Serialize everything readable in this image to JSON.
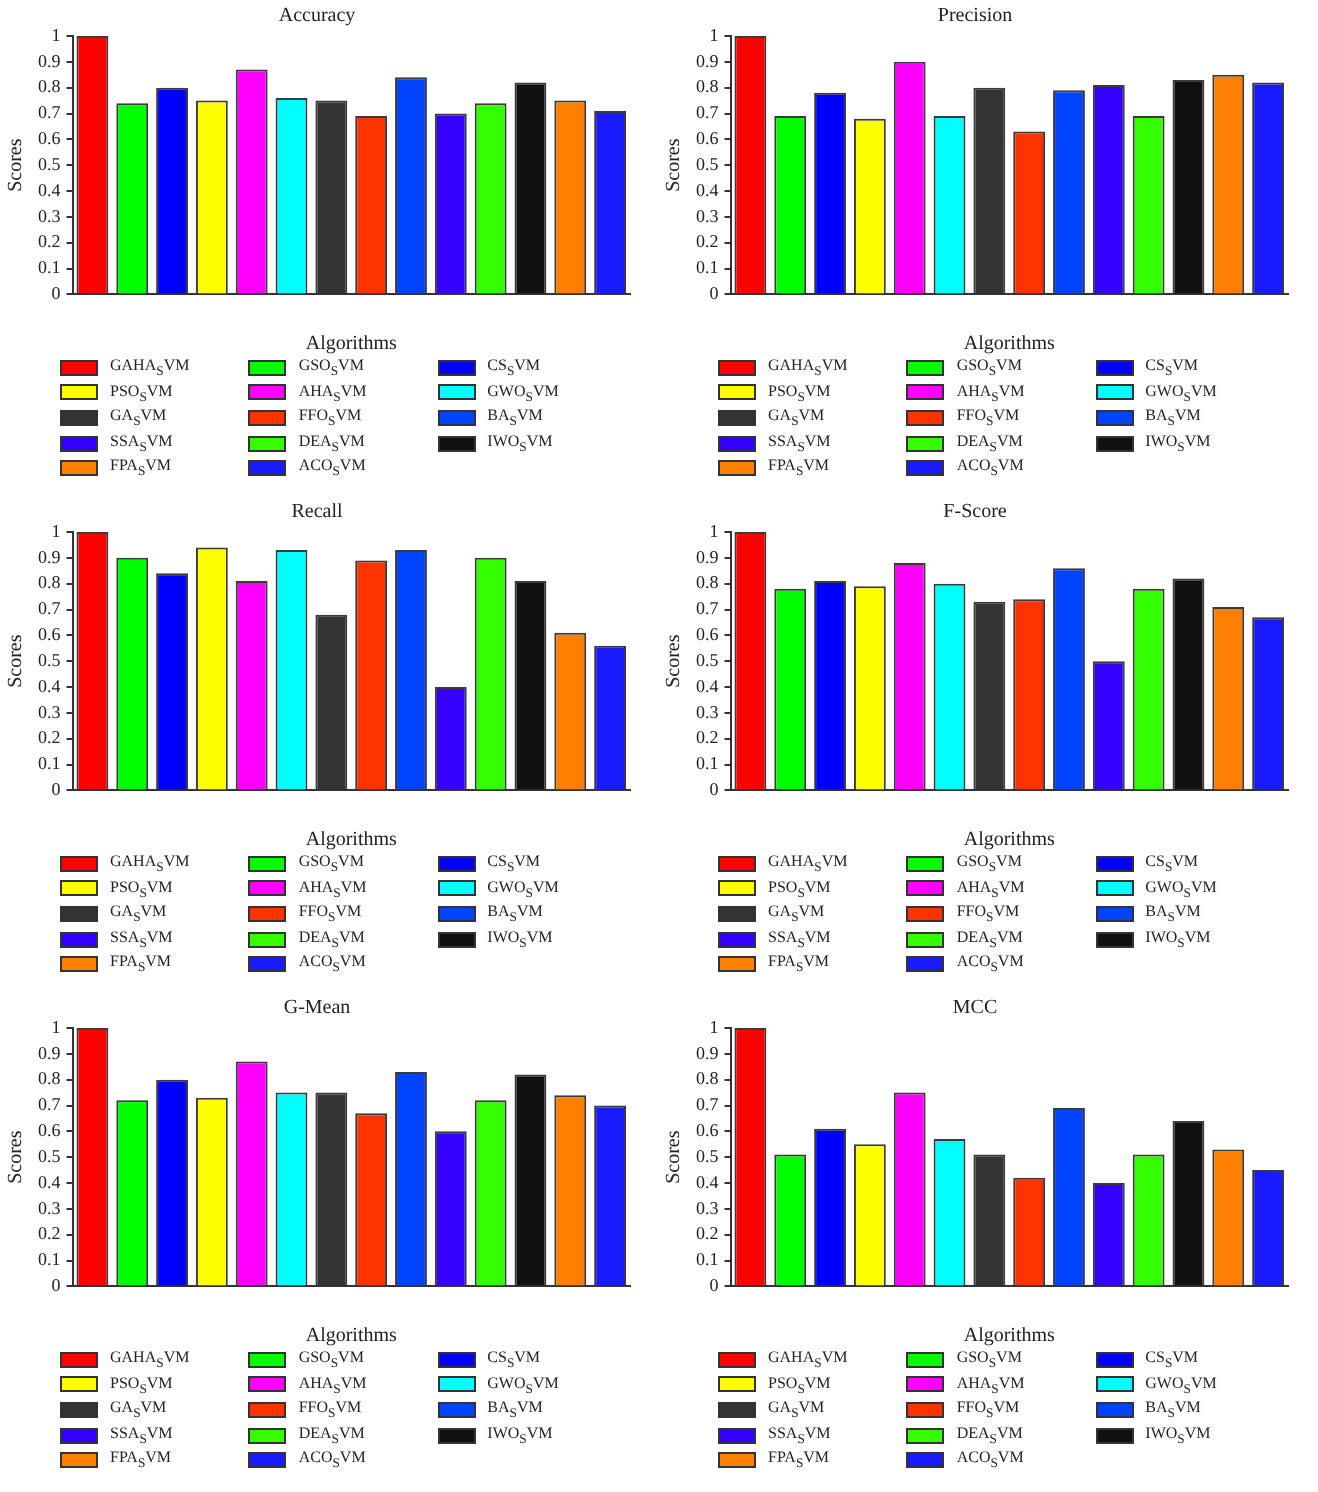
{
  "chart_data": [
    {
      "type": "bar",
      "title": "Accuracy",
      "xlabel": "Algorithms",
      "ylabel": "Scores",
      "categories": [
        null,
        null,
        null,
        null,
        null,
        null,
        null,
        null,
        null,
        null,
        null,
        null,
        null,
        null
      ],
      "ylim": [
        0,
        1
      ],
      "yticks": [
        0,
        0.1,
        0.2,
        0.3,
        0.4,
        0.5,
        0.6,
        0.7,
        0.8,
        0.9,
        1
      ],
      "legend": "bottom",
      "series": [
        {
          "name": "GAHA$_{S}$VM",
          "color": "#ff0000",
          "values": [
            1.0,
            null,
            null,
            null,
            null,
            null,
            null,
            null,
            null,
            null,
            null,
            null,
            null,
            null
          ]
        },
        {
          "name": "GSO$_{S}$VM",
          "color": "#00ff00",
          "values": [
            null,
            0.74,
            null,
            null,
            null,
            null,
            null,
            null,
            null,
            null,
            null,
            null,
            null,
            null
          ]
        },
        {
          "name": "CS$_{S}$VM",
          "color": "#0000ff",
          "values": [
            null,
            null,
            0.8,
            null,
            null,
            null,
            null,
            null,
            null,
            null,
            null,
            null,
            null,
            null
          ]
        },
        {
          "name": "PSO$_{S}$VM",
          "color": "#ffff00",
          "values": [
            null,
            null,
            null,
            0.75,
            null,
            null,
            null,
            null,
            null,
            null,
            null,
            null,
            null,
            null
          ]
        },
        {
          "name": "AHA$_{S}$VM",
          "color": "#ff00ff",
          "values": [
            null,
            null,
            null,
            null,
            0.87,
            null,
            null,
            null,
            null,
            null,
            null,
            null,
            null,
            null
          ]
        },
        {
          "name": "GWO$_{S}$VM",
          "color": "#00ffff",
          "values": [
            null,
            null,
            null,
            null,
            null,
            0.76,
            null,
            null,
            null,
            null,
            null,
            null,
            null,
            null
          ]
        },
        {
          "name": "GA$_{S}$VM",
          "color": "#333333",
          "values": [
            null,
            null,
            null,
            null,
            null,
            null,
            0.75,
            null,
            null,
            null,
            null,
            null,
            null,
            null
          ]
        },
        {
          "name": "FFO$_{S}$VM",
          "color": "#ff3300",
          "values": [
            null,
            null,
            null,
            null,
            null,
            null,
            null,
            0.69,
            null,
            null,
            null,
            null,
            null,
            null
          ]
        },
        {
          "name": "BA$_{S}$VM",
          "color": "#0044ff",
          "values": [
            null,
            null,
            null,
            null,
            null,
            null,
            null,
            null,
            0.84,
            null,
            null,
            null,
            null,
            null
          ]
        },
        {
          "name": "SSA$_{S}$VM",
          "color": "#3300ff",
          "values": [
            null,
            null,
            null,
            null,
            null,
            null,
            null,
            null,
            null,
            0.7,
            null,
            null,
            null,
            null
          ]
        },
        {
          "name": "DEA$_{S}$VM",
          "color": "#33ff00",
          "values": [
            null,
            null,
            null,
            null,
            null,
            null,
            null,
            null,
            null,
            null,
            0.74,
            null,
            null,
            null
          ]
        },
        {
          "name": "IWO$_{S}$VM",
          "color": "#111111",
          "values": [
            null,
            null,
            null,
            null,
            null,
            null,
            null,
            null,
            null,
            null,
            null,
            0.82,
            null,
            null
          ]
        },
        {
          "name": "FPA$_{S}$VM",
          "color": "#ff8000",
          "values": [
            null,
            null,
            null,
            null,
            null,
            null,
            null,
            null,
            null,
            null,
            null,
            null,
            0.75,
            null
          ]
        },
        {
          "name": "ACO$_{S}$VM",
          "color": "#1a1aff",
          "values": [
            null,
            null,
            null,
            null,
            null,
            null,
            null,
            null,
            null,
            null,
            null,
            null,
            null,
            0.71
          ]
        }
      ]
    },
    {
      "type": "bar",
      "title": "Precision",
      "xlabel": "Algorithms",
      "ylabel": "Scores",
      "categories": [
        null,
        null,
        null,
        null,
        null,
        null,
        null,
        null,
        null,
        null,
        null,
        null,
        null,
        null
      ],
      "ylim": [
        0,
        1
      ],
      "yticks": [
        0,
        0.1,
        0.2,
        0.3,
        0.4,
        0.5,
        0.6,
        0.7,
        0.8,
        0.9,
        1
      ],
      "legend": "bottom",
      "series": [
        {
          "name": "GAHA$_{S}$VM",
          "color": "#ff0000",
          "values": [
            1.0,
            null,
            null,
            null,
            null,
            null,
            null,
            null,
            null,
            null,
            null,
            null,
            null,
            null
          ]
        },
        {
          "name": "GSO$_{S}$VM",
          "color": "#00ff00",
          "values": [
            null,
            0.69,
            null,
            null,
            null,
            null,
            null,
            null,
            null,
            null,
            null,
            null,
            null,
            null
          ]
        },
        {
          "name": "CS$_{S}$VM",
          "color": "#0000ff",
          "values": [
            null,
            null,
            0.78,
            null,
            null,
            null,
            null,
            null,
            null,
            null,
            null,
            null,
            null,
            null
          ]
        },
        {
          "name": "PSO$_{S}$VM",
          "color": "#ffff00",
          "values": [
            null,
            null,
            null,
            0.68,
            null,
            null,
            null,
            null,
            null,
            null,
            null,
            null,
            null,
            null
          ]
        },
        {
          "name": "AHA$_{S}$VM",
          "color": "#ff00ff",
          "values": [
            null,
            null,
            null,
            null,
            0.9,
            null,
            null,
            null,
            null,
            null,
            null,
            null,
            null,
            null
          ]
        },
        {
          "name": "GWO$_{S}$VM",
          "color": "#00ffff",
          "values": [
            null,
            null,
            null,
            null,
            null,
            0.69,
            null,
            null,
            null,
            null,
            null,
            null,
            null,
            null
          ]
        },
        {
          "name": "GA$_{S}$VM",
          "color": "#333333",
          "values": [
            null,
            null,
            null,
            null,
            null,
            null,
            0.8,
            null,
            null,
            null,
            null,
            null,
            null,
            null
          ]
        },
        {
          "name": "FFO$_{S}$VM",
          "color": "#ff3300",
          "values": [
            null,
            null,
            null,
            null,
            null,
            null,
            null,
            0.63,
            null,
            null,
            null,
            null,
            null,
            null
          ]
        },
        {
          "name": "BA$_{S}$VM",
          "color": "#0044ff",
          "values": [
            null,
            null,
            null,
            null,
            null,
            null,
            null,
            null,
            0.79,
            null,
            null,
            null,
            null,
            null
          ]
        },
        {
          "name": "SSA$_{S}$VM",
          "color": "#3300ff",
          "values": [
            null,
            null,
            null,
            null,
            null,
            null,
            null,
            null,
            null,
            0.81,
            null,
            null,
            null,
            null
          ]
        },
        {
          "name": "DEA$_{S}$VM",
          "color": "#33ff00",
          "values": [
            null,
            null,
            null,
            null,
            null,
            null,
            null,
            null,
            null,
            null,
            0.69,
            null,
            null,
            null
          ]
        },
        {
          "name": "IWO$_{S}$VM",
          "color": "#111111",
          "values": [
            null,
            null,
            null,
            null,
            null,
            null,
            null,
            null,
            null,
            null,
            null,
            0.83,
            null,
            null
          ]
        },
        {
          "name": "FPA$_{S}$VM",
          "color": "#ff8000",
          "values": [
            null,
            null,
            null,
            null,
            null,
            null,
            null,
            null,
            null,
            null,
            null,
            null,
            0.85,
            null
          ]
        },
        {
          "name": "ACO$_{S}$VM",
          "color": "#1a1aff",
          "values": [
            null,
            null,
            null,
            null,
            null,
            null,
            null,
            null,
            null,
            null,
            null,
            null,
            null,
            0.82
          ]
        }
      ]
    },
    {
      "type": "bar",
      "title": "Recall",
      "xlabel": "Algorithms",
      "ylabel": "Scores",
      "categories": [
        null,
        null,
        null,
        null,
        null,
        null,
        null,
        null,
        null,
        null,
        null,
        null,
        null,
        null
      ],
      "ylim": [
        0,
        1
      ],
      "yticks": [
        0,
        0.1,
        0.2,
        0.3,
        0.4,
        0.5,
        0.6,
        0.7,
        0.8,
        0.9,
        1
      ],
      "legend": "bottom",
      "series": [
        {
          "name": "GAHA$_{S}$VM",
          "color": "#ff0000",
          "values": [
            1.0,
            null,
            null,
            null,
            null,
            null,
            null,
            null,
            null,
            null,
            null,
            null,
            null,
            null
          ]
        },
        {
          "name": "GSO$_{S}$VM",
          "color": "#00ff00",
          "values": [
            null,
            0.9,
            null,
            null,
            null,
            null,
            null,
            null,
            null,
            null,
            null,
            null,
            null,
            null
          ]
        },
        {
          "name": "CS$_{S}$VM",
          "color": "#0000ff",
          "values": [
            null,
            null,
            0.84,
            null,
            null,
            null,
            null,
            null,
            null,
            null,
            null,
            null,
            null,
            null
          ]
        },
        {
          "name": "PSO$_{S}$VM",
          "color": "#ffff00",
          "values": [
            null,
            null,
            null,
            0.94,
            null,
            null,
            null,
            null,
            null,
            null,
            null,
            null,
            null,
            null
          ]
        },
        {
          "name": "AHA$_{S}$VM",
          "color": "#ff00ff",
          "values": [
            null,
            null,
            null,
            null,
            0.81,
            null,
            null,
            null,
            null,
            null,
            null,
            null,
            null,
            null
          ]
        },
        {
          "name": "GWO$_{S}$VM",
          "color": "#00ffff",
          "values": [
            null,
            null,
            null,
            null,
            null,
            0.93,
            null,
            null,
            null,
            null,
            null,
            null,
            null,
            null
          ]
        },
        {
          "name": "GA$_{S}$VM",
          "color": "#333333",
          "values": [
            null,
            null,
            null,
            null,
            null,
            null,
            0.68,
            null,
            null,
            null,
            null,
            null,
            null,
            null
          ]
        },
        {
          "name": "FFO$_{S}$VM",
          "color": "#ff3300",
          "values": [
            null,
            null,
            null,
            null,
            null,
            null,
            null,
            0.89,
            null,
            null,
            null,
            null,
            null,
            null
          ]
        },
        {
          "name": "BA$_{S}$VM",
          "color": "#0044ff",
          "values": [
            null,
            null,
            null,
            null,
            null,
            null,
            null,
            null,
            0.93,
            null,
            null,
            null,
            null,
            null
          ]
        },
        {
          "name": "SSA$_{S}$VM",
          "color": "#3300ff",
          "values": [
            null,
            null,
            null,
            null,
            null,
            null,
            null,
            null,
            null,
            0.4,
            null,
            null,
            null,
            null
          ]
        },
        {
          "name": "DEA$_{S}$VM",
          "color": "#33ff00",
          "values": [
            null,
            null,
            null,
            null,
            null,
            null,
            null,
            null,
            null,
            null,
            0.9,
            null,
            null,
            null
          ]
        },
        {
          "name": "IWO$_{S}$VM",
          "color": "#111111",
          "values": [
            null,
            null,
            null,
            null,
            null,
            null,
            null,
            null,
            null,
            null,
            null,
            0.81,
            null,
            null
          ]
        },
        {
          "name": "FPA$_{S}$VM",
          "color": "#ff8000",
          "values": [
            null,
            null,
            null,
            null,
            null,
            null,
            null,
            null,
            null,
            null,
            null,
            null,
            0.61,
            null
          ]
        },
        {
          "name": "ACO$_{S}$VM",
          "color": "#1a1aff",
          "values": [
            null,
            null,
            null,
            null,
            null,
            null,
            null,
            null,
            null,
            null,
            null,
            null,
            null,
            0.56
          ]
        }
      ]
    },
    {
      "type": "bar",
      "title": "F-Score",
      "xlabel": "Algorithms",
      "ylabel": "Scores",
      "categories": [
        null,
        null,
        null,
        null,
        null,
        null,
        null,
        null,
        null,
        null,
        null,
        null,
        null,
        null
      ],
      "ylim": [
        0,
        1
      ],
      "yticks": [
        0,
        0.1,
        0.2,
        0.3,
        0.4,
        0.5,
        0.6,
        0.7,
        0.8,
        0.9,
        1
      ],
      "legend": "bottom",
      "series": [
        {
          "name": "GAHA$_{S}$VM",
          "color": "#ff0000",
          "values": [
            1.0,
            null,
            null,
            null,
            null,
            null,
            null,
            null,
            null,
            null,
            null,
            null,
            null,
            null
          ]
        },
        {
          "name": "GSO$_{S}$VM",
          "color": "#00ff00",
          "values": [
            null,
            0.78,
            null,
            null,
            null,
            null,
            null,
            null,
            null,
            null,
            null,
            null,
            null,
            null
          ]
        },
        {
          "name": "CS$_{S}$VM",
          "color": "#0000ff",
          "values": [
            null,
            null,
            0.81,
            null,
            null,
            null,
            null,
            null,
            null,
            null,
            null,
            null,
            null,
            null
          ]
        },
        {
          "name": "PSO$_{S}$VM",
          "color": "#ffff00",
          "values": [
            null,
            null,
            null,
            0.79,
            null,
            null,
            null,
            null,
            null,
            null,
            null,
            null,
            null,
            null
          ]
        },
        {
          "name": "AHA$_{S}$VM",
          "color": "#ff00ff",
          "values": [
            null,
            null,
            null,
            null,
            0.88,
            null,
            null,
            null,
            null,
            null,
            null,
            null,
            null,
            null
          ]
        },
        {
          "name": "GWO$_{S}$VM",
          "color": "#00ffff",
          "values": [
            null,
            null,
            null,
            null,
            null,
            0.8,
            null,
            null,
            null,
            null,
            null,
            null,
            null,
            null
          ]
        },
        {
          "name": "GA$_{S}$VM",
          "color": "#333333",
          "values": [
            null,
            null,
            null,
            null,
            null,
            null,
            0.73,
            null,
            null,
            null,
            null,
            null,
            null,
            null
          ]
        },
        {
          "name": "FFO$_{S}$VM",
          "color": "#ff3300",
          "values": [
            null,
            null,
            null,
            null,
            null,
            null,
            null,
            0.74,
            null,
            null,
            null,
            null,
            null,
            null
          ]
        },
        {
          "name": "BA$_{S}$VM",
          "color": "#0044ff",
          "values": [
            null,
            null,
            null,
            null,
            null,
            null,
            null,
            null,
            0.86,
            null,
            null,
            null,
            null,
            null
          ]
        },
        {
          "name": "SSA$_{S}$VM",
          "color": "#3300ff",
          "values": [
            null,
            null,
            null,
            null,
            null,
            null,
            null,
            null,
            null,
            0.5,
            null,
            null,
            null,
            null
          ]
        },
        {
          "name": "DEA$_{S}$VM",
          "color": "#33ff00",
          "values": [
            null,
            null,
            null,
            null,
            null,
            null,
            null,
            null,
            null,
            null,
            0.78,
            null,
            null,
            null
          ]
        },
        {
          "name": "IWO$_{S}$VM",
          "color": "#111111",
          "values": [
            null,
            null,
            null,
            null,
            null,
            null,
            null,
            null,
            null,
            null,
            null,
            0.82,
            null,
            null
          ]
        },
        {
          "name": "FPA$_{S}$VM",
          "color": "#ff8000",
          "values": [
            null,
            null,
            null,
            null,
            null,
            null,
            null,
            null,
            null,
            null,
            null,
            null,
            0.71,
            null
          ]
        },
        {
          "name": "ACO$_{S}$VM",
          "color": "#1a1aff",
          "values": [
            null,
            null,
            null,
            null,
            null,
            null,
            null,
            null,
            null,
            null,
            null,
            null,
            null,
            0.67
          ]
        }
      ]
    },
    {
      "type": "bar",
      "title": "G-Mean",
      "xlabel": "Algorithms",
      "ylabel": "Scores",
      "categories": [
        null,
        null,
        null,
        null,
        null,
        null,
        null,
        null,
        null,
        null,
        null,
        null,
        null,
        null
      ],
      "ylim": [
        0,
        1
      ],
      "yticks": [
        0,
        0.1,
        0.2,
        0.3,
        0.4,
        0.5,
        0.6,
        0.7,
        0.8,
        0.9,
        1
      ],
      "legend": "bottom",
      "series": [
        {
          "name": "GAHA$_{S}$VM",
          "color": "#ff0000",
          "values": [
            1.0,
            null,
            null,
            null,
            null,
            null,
            null,
            null,
            null,
            null,
            null,
            null,
            null,
            null
          ]
        },
        {
          "name": "GSO$_{S}$VM",
          "color": "#00ff00",
          "values": [
            null,
            0.72,
            null,
            null,
            null,
            null,
            null,
            null,
            null,
            null,
            null,
            null,
            null,
            null
          ]
        },
        {
          "name": "CS$_{S}$VM",
          "color": "#0000ff",
          "values": [
            null,
            null,
            0.8,
            null,
            null,
            null,
            null,
            null,
            null,
            null,
            null,
            null,
            null,
            null
          ]
        },
        {
          "name": "PSO$_{S}$VM",
          "color": "#ffff00",
          "values": [
            null,
            null,
            null,
            0.73,
            null,
            null,
            null,
            null,
            null,
            null,
            null,
            null,
            null,
            null
          ]
        },
        {
          "name": "AHA$_{S}$VM",
          "color": "#ff00ff",
          "values": [
            null,
            null,
            null,
            null,
            0.87,
            null,
            null,
            null,
            null,
            null,
            null,
            null,
            null,
            null
          ]
        },
        {
          "name": "GWO$_{S}$VM",
          "color": "#00ffff",
          "values": [
            null,
            null,
            null,
            null,
            null,
            0.75,
            null,
            null,
            null,
            null,
            null,
            null,
            null,
            null
          ]
        },
        {
          "name": "GA$_{S}$VM",
          "color": "#333333",
          "values": [
            null,
            null,
            null,
            null,
            null,
            null,
            0.75,
            null,
            null,
            null,
            null,
            null,
            null,
            null
          ]
        },
        {
          "name": "FFO$_{S}$VM",
          "color": "#ff3300",
          "values": [
            null,
            null,
            null,
            null,
            null,
            null,
            null,
            0.67,
            null,
            null,
            null,
            null,
            null,
            null
          ]
        },
        {
          "name": "BA$_{S}$VM",
          "color": "#0044ff",
          "values": [
            null,
            null,
            null,
            null,
            null,
            null,
            null,
            null,
            0.83,
            null,
            null,
            null,
            null,
            null
          ]
        },
        {
          "name": "SSA$_{S}$VM",
          "color": "#3300ff",
          "values": [
            null,
            null,
            null,
            null,
            null,
            null,
            null,
            null,
            null,
            0.6,
            null,
            null,
            null,
            null
          ]
        },
        {
          "name": "DEA$_{S}$VM",
          "color": "#33ff00",
          "values": [
            null,
            null,
            null,
            null,
            null,
            null,
            null,
            null,
            null,
            null,
            0.72,
            null,
            null,
            null
          ]
        },
        {
          "name": "IWO$_{S}$VM",
          "color": "#111111",
          "values": [
            null,
            null,
            null,
            null,
            null,
            null,
            null,
            null,
            null,
            null,
            null,
            0.82,
            null,
            null
          ]
        },
        {
          "name": "FPA$_{S}$VM",
          "color": "#ff8000",
          "values": [
            null,
            null,
            null,
            null,
            null,
            null,
            null,
            null,
            null,
            null,
            null,
            null,
            0.74,
            null
          ]
        },
        {
          "name": "ACO$_{S}$VM",
          "color": "#1a1aff",
          "values": [
            null,
            null,
            null,
            null,
            null,
            null,
            null,
            null,
            null,
            null,
            null,
            null,
            null,
            0.7
          ]
        }
      ]
    },
    {
      "type": "bar",
      "title": "MCC",
      "xlabel": "Algorithms",
      "ylabel": "Scores",
      "categories": [
        null,
        null,
        null,
        null,
        null,
        null,
        null,
        null,
        null,
        null,
        null,
        null,
        null,
        null
      ],
      "ylim": [
        0,
        1
      ],
      "yticks": [
        0,
        0.1,
        0.2,
        0.3,
        0.4,
        0.5,
        0.6,
        0.7,
        0.8,
        0.9,
        1
      ],
      "legend": "bottom",
      "series": [
        {
          "name": "GAHA$_{S}$VM",
          "color": "#ff0000",
          "values": [
            1.0,
            null,
            null,
            null,
            null,
            null,
            null,
            null,
            null,
            null,
            null,
            null,
            null,
            null
          ]
        },
        {
          "name": "GSO$_{S}$VM",
          "color": "#00ff00",
          "values": [
            null,
            0.51,
            null,
            null,
            null,
            null,
            null,
            null,
            null,
            null,
            null,
            null,
            null,
            null
          ]
        },
        {
          "name": "CS$_{S}$VM",
          "color": "#0000ff",
          "values": [
            null,
            null,
            0.61,
            null,
            null,
            null,
            null,
            null,
            null,
            null,
            null,
            null,
            null,
            null
          ]
        },
        {
          "name": "PSO$_{S}$VM",
          "color": "#ffff00",
          "values": [
            null,
            null,
            null,
            0.55,
            null,
            null,
            null,
            null,
            null,
            null,
            null,
            null,
            null,
            null
          ]
        },
        {
          "name": "AHA$_{S}$VM",
          "color": "#ff00ff",
          "values": [
            null,
            null,
            null,
            null,
            0.75,
            null,
            null,
            null,
            null,
            null,
            null,
            null,
            null,
            null
          ]
        },
        {
          "name": "GWO$_{S}$VM",
          "color": "#00ffff",
          "values": [
            null,
            null,
            null,
            null,
            null,
            0.57,
            null,
            null,
            null,
            null,
            null,
            null,
            null,
            null
          ]
        },
        {
          "name": "GA$_{S}$VM",
          "color": "#333333",
          "values": [
            null,
            null,
            null,
            null,
            null,
            null,
            0.51,
            null,
            null,
            null,
            null,
            null,
            null,
            null
          ]
        },
        {
          "name": "FFO$_{S}$VM",
          "color": "#ff3300",
          "values": [
            null,
            null,
            null,
            null,
            null,
            null,
            null,
            0.42,
            null,
            null,
            null,
            null,
            null,
            null
          ]
        },
        {
          "name": "BA$_{S}$VM",
          "color": "#0044ff",
          "values": [
            null,
            null,
            null,
            null,
            null,
            null,
            null,
            null,
            0.69,
            null,
            null,
            null,
            null,
            null
          ]
        },
        {
          "name": "SSA$_{S}$VM",
          "color": "#3300ff",
          "values": [
            null,
            null,
            null,
            null,
            null,
            null,
            null,
            null,
            null,
            0.4,
            null,
            null,
            null,
            null
          ]
        },
        {
          "name": "DEA$_{S}$VM",
          "color": "#33ff00",
          "values": [
            null,
            null,
            null,
            null,
            null,
            null,
            null,
            null,
            null,
            null,
            0.51,
            null,
            null,
            null
          ]
        },
        {
          "name": "IWO$_{S}$VM",
          "color": "#111111",
          "values": [
            null,
            null,
            null,
            null,
            null,
            null,
            null,
            null,
            null,
            null,
            null,
            0.64,
            null,
            null
          ]
        },
        {
          "name": "FPA$_{S}$VM",
          "color": "#ff8000",
          "values": [
            null,
            null,
            null,
            null,
            null,
            null,
            null,
            null,
            null,
            null,
            null,
            null,
            0.53,
            null
          ]
        },
        {
          "name": "ACO$_{S}$VM",
          "color": "#1a1aff",
          "values": [
            null,
            null,
            null,
            null,
            null,
            null,
            null,
            null,
            null,
            null,
            null,
            null,
            null,
            0.45
          ]
        }
      ]
    }
  ]
}
